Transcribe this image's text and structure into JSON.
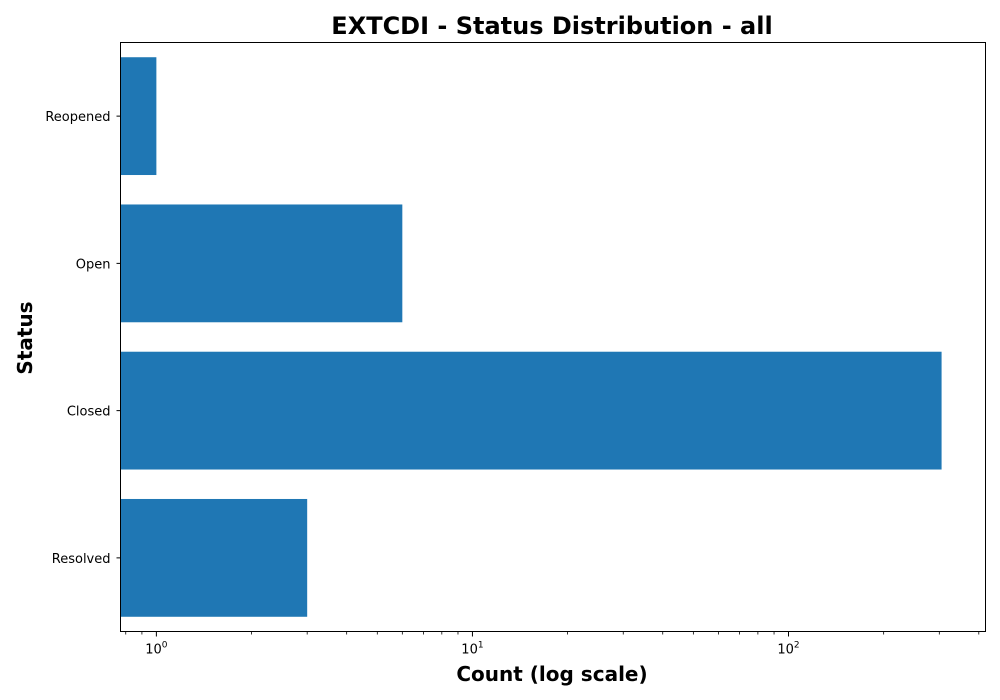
{
  "chart_data": {
    "type": "bar",
    "orientation": "horizontal",
    "title": "EXTCDI - Status Distribution - all",
    "xlabel": "Count (log scale)",
    "ylabel": "Status",
    "x_scale": "log",
    "xlim": [
      0.77,
      420
    ],
    "x_ticks": [
      {
        "base": "10",
        "exp": "0",
        "value": 1
      },
      {
        "base": "10",
        "exp": "1",
        "value": 10
      },
      {
        "base": "10",
        "exp": "2",
        "value": 100
      }
    ],
    "categories": [
      "Reopened",
      "Open",
      "Closed",
      "Resolved"
    ],
    "values": [
      1,
      6,
      305,
      3
    ],
    "bar_color": "#1f77b4",
    "grid": false,
    "legend": "none"
  }
}
